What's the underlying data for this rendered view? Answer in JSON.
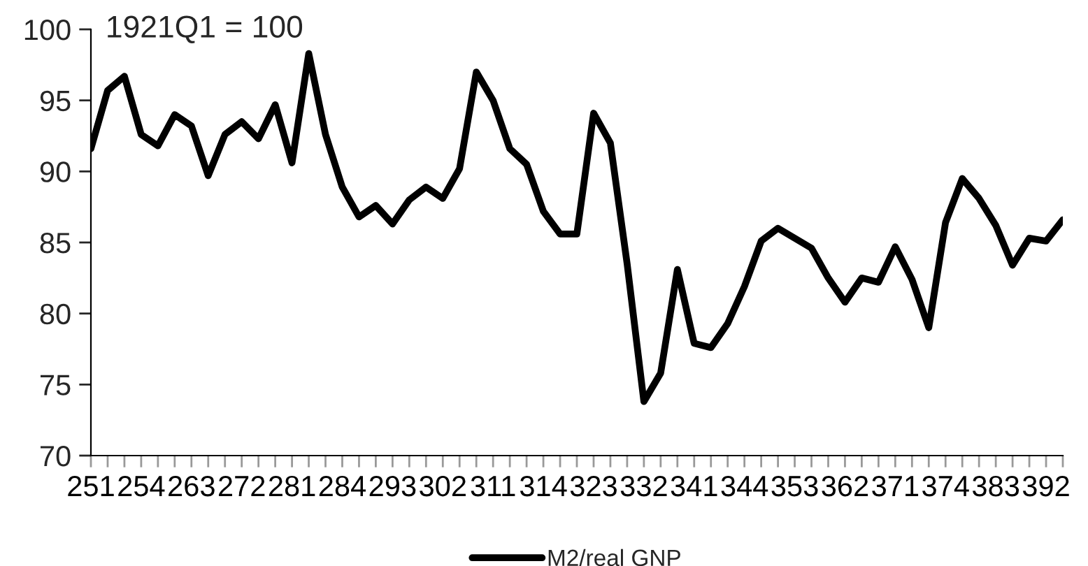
{
  "chart_data": {
    "type": "line",
    "categories": [
      "251",
      null,
      null,
      "254",
      null,
      null,
      "263",
      null,
      null,
      "272",
      null,
      null,
      "281",
      null,
      null,
      "284",
      null,
      null,
      "293",
      null,
      null,
      "302",
      null,
      null,
      "311",
      null,
      null,
      "314",
      null,
      null,
      "323",
      null,
      null,
      "332",
      null,
      null,
      "341",
      null,
      null,
      "344",
      null,
      null,
      "353",
      null,
      null,
      "362",
      null,
      null,
      "371",
      null,
      null,
      "374",
      null,
      null,
      "383",
      null,
      null,
      "392",
      null
    ],
    "series": [
      {
        "name": "M2/real GNP",
        "color": "#000000",
        "values": [
          91.6,
          95.7,
          96.7,
          92.6,
          91.8,
          94.0,
          93.2,
          89.7,
          92.6,
          93.5,
          92.3,
          94.7,
          90.6,
          98.3,
          92.6,
          88.9,
          86.8,
          87.6,
          86.3,
          88.0,
          88.9,
          88.1,
          90.2,
          97.0,
          95.0,
          91.6,
          90.5,
          87.2,
          85.6,
          85.6,
          94.1,
          92.0,
          83.5,
          73.8,
          75.8,
          83.1,
          77.9,
          77.6,
          79.3,
          81.9,
          85.1,
          86.0,
          85.3,
          84.6,
          82.5,
          80.8,
          82.5,
          82.2,
          84.7,
          82.4,
          79.0,
          86.4,
          89.5,
          88.1,
          86.2,
          83.4,
          85.3,
          85.1,
          86.6
        ]
      }
    ],
    "ylim": [
      70,
      100
    ],
    "yticks": [
      70,
      75,
      80,
      85,
      90,
      95,
      100
    ],
    "annotations": [
      "1921Q1 = 100"
    ],
    "legend": "bottom",
    "grid": false,
    "marker": "none",
    "line_style": "solid"
  }
}
